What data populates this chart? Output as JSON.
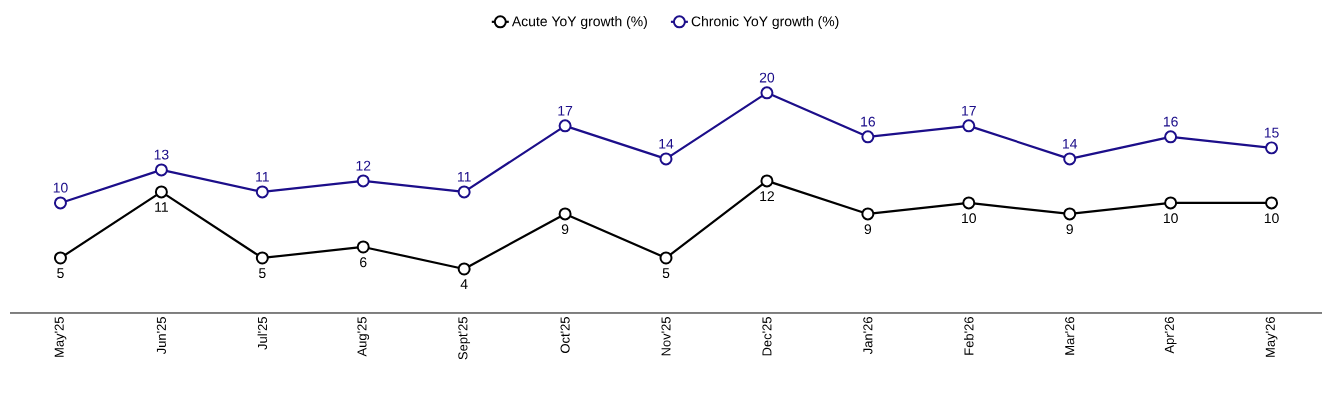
{
  "chart_data": {
    "type": "line",
    "categories": [
      "May'25",
      "Jun'25",
      "Jul'25",
      "Aug'25",
      "Sept'25",
      "Oct'25",
      "Nov'25",
      "Dec'25",
      "Jan'26",
      "Feb'26",
      "Mar'26",
      "Apr'26",
      "May'26"
    ],
    "series": [
      {
        "name": "Acute YoY growth (%)",
        "color": "#000000",
        "values": [
          5,
          11,
          5,
          6,
          4,
          9,
          5,
          12,
          9,
          10,
          9,
          10,
          10
        ]
      },
      {
        "name": "Chronic YoY growth (%)",
        "color": "#1c0e8a",
        "values": [
          10,
          13,
          11,
          12,
          11,
          17,
          14,
          20,
          16,
          17,
          14,
          16,
          15
        ]
      }
    ],
    "data_labels": true,
    "legend": "top",
    "marker": "circle",
    "line_style": "solid",
    "grid": false,
    "tick_labels": "x"
  }
}
